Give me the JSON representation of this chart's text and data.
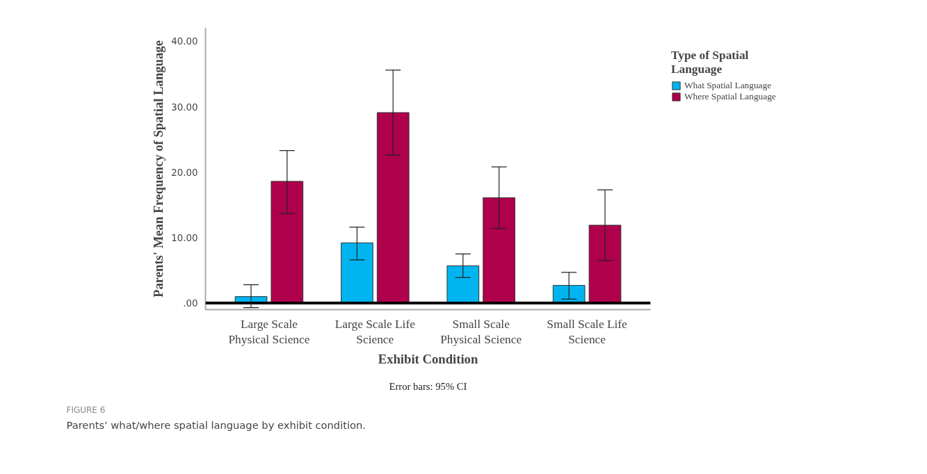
{
  "chart_data": {
    "type": "bar",
    "xlabel": "Exhibit Condition",
    "ylabel": "Parents' Mean Frequency of Spatial Language",
    "legend_title": "Type of Spatial Language",
    "categories": [
      "Large Scale Physical Science",
      "Large Scale Life Science",
      "Small Scale Physical Science",
      "Small Scale Life Science"
    ],
    "series": [
      {
        "name": "What Spatial Language",
        "color": "#00b4f0",
        "values": [
          1.0,
          9.2,
          5.7,
          2.7
        ],
        "errors": [
          [
            -0.7,
            2.8
          ],
          [
            6.6,
            11.6
          ],
          [
            3.9,
            7.5
          ],
          [
            0.6,
            4.7
          ]
        ]
      },
      {
        "name": "Where Spatial Language",
        "color": "#af004b",
        "values": [
          18.6,
          29.1,
          16.1,
          11.9
        ],
        "errors": [
          [
            13.7,
            23.3
          ],
          [
            22.6,
            35.6
          ],
          [
            11.4,
            20.8
          ],
          [
            6.5,
            17.3
          ]
        ]
      }
    ],
    "ylim": [
      -1,
      42
    ],
    "yticks": [
      {
        "value": 0,
        "label": ".00"
      },
      {
        "value": 10,
        "label": "10.00"
      },
      {
        "value": 20,
        "label": "20.00"
      },
      {
        "value": 30,
        "label": "30.00"
      },
      {
        "value": 40,
        "label": "40.00"
      }
    ],
    "ref_lines": [
      {
        "axis": "y",
        "value": 0,
        "color": "#000000"
      }
    ],
    "grid": false,
    "legend": "top right",
    "annotations": [
      "Error bars: 95% CI",
      "FIGURE 6",
      "Parents’ what/where spatial language by exhibit condition."
    ]
  }
}
